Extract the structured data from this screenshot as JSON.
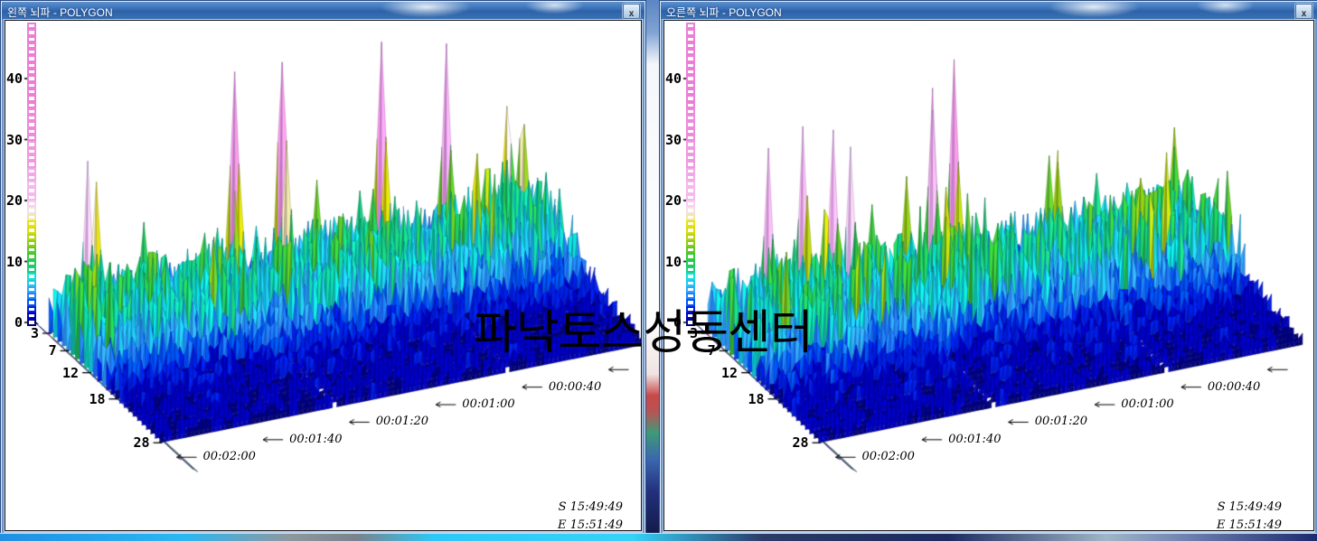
{
  "watermark": {
    "text": "파낙토스성동센터"
  },
  "windows": [
    {
      "title": "왼쪽 뇌파 - POLYGON",
      "close_label": "x"
    },
    {
      "title": "오른쪽 뇌파 - POLYGON",
      "close_label": "x"
    }
  ],
  "chart_data": [
    {
      "type": "surface",
      "subtype": "eeg-3d-waterfall-polygon",
      "window_title": "왼쪽 뇌파 - POLYGON",
      "amplitude_axis": {
        "ticks": [
          0,
          10,
          20,
          30,
          40
        ],
        "range": [
          0,
          49
        ]
      },
      "frequency_axis": {
        "ticks": [
          3,
          7,
          12,
          18,
          28
        ],
        "range": [
          2,
          28
        ]
      },
      "time_axis": {
        "labels": [
          "00:00:40",
          "00:01:00",
          "00:01:20",
          "00:01:40",
          "00:02:00"
        ],
        "step_seconds": 20,
        "direction": "time-increases-toward-lower-left"
      },
      "session": {
        "start": "S 15:49:49",
        "end": "E 15:51:49"
      },
      "legend_position": "left-colorbar",
      "synthesis": {
        "seed": 20417,
        "rows": 27,
        "cols": 113,
        "gap_columns": [
          40,
          80
        ],
        "spike_clusters": [
          7,
          30,
          57,
          82,
          104
        ],
        "max_amplitude": 36
      }
    },
    {
      "type": "surface",
      "subtype": "eeg-3d-waterfall-polygon",
      "window_title": "오른쪽 뇌파 - POLYGON",
      "amplitude_axis": {
        "ticks": [
          0,
          10,
          20,
          30,
          40
        ],
        "range": [
          0,
          49
        ]
      },
      "frequency_axis": {
        "ticks": [
          3,
          7,
          12,
          18,
          28
        ],
        "range": [
          2,
          28
        ]
      },
      "time_axis": {
        "labels": [
          "00:00:40",
          "00:01:00",
          "00:01:20",
          "00:01:40",
          "00:02:00"
        ],
        "step_seconds": 20,
        "direction": "time-increases-toward-lower-left"
      },
      "session": {
        "start": "S 15:49:49",
        "end": "E 15:51:49"
      },
      "legend_position": "left-colorbar",
      "synthesis": {
        "seed": 91537,
        "rows": 27,
        "cols": 113,
        "gap_columns": [
          40,
          80
        ],
        "spike_clusters": [
          10,
          28,
          50,
          76,
          100
        ],
        "max_amplitude": 36
      }
    }
  ],
  "colormap": {
    "stops": [
      [
        0,
        "#000080"
      ],
      [
        1,
        "#0000C0"
      ],
      [
        2,
        "#0020E0"
      ],
      [
        3,
        "#0055F0"
      ],
      [
        4,
        "#2080FF"
      ],
      [
        5,
        "#30A8F8"
      ],
      [
        6,
        "#20C8F0"
      ],
      [
        7,
        "#10E0D8"
      ],
      [
        8,
        "#10D8A8"
      ],
      [
        9,
        "#18D080"
      ],
      [
        10,
        "#20CC58"
      ],
      [
        11,
        "#38C838"
      ],
      [
        12,
        "#60C828"
      ],
      [
        13,
        "#90CC18"
      ],
      [
        14,
        "#B8D410"
      ],
      [
        15,
        "#D8DC08"
      ],
      [
        16,
        "#E8E408"
      ],
      [
        17,
        "#EEE8A8"
      ],
      [
        18,
        "#F4E0E4"
      ],
      [
        19,
        "#F8D0F0"
      ],
      [
        20,
        "#F4B8EC"
      ],
      [
        23,
        "#F2A8E6"
      ],
      [
        26,
        "#F098E0"
      ],
      [
        30,
        "#EE8ADA"
      ],
      [
        35,
        "#EC7ED6"
      ]
    ],
    "axis_fan_colors": [
      "#16307E",
      "#16307E",
      "#16307E",
      "#C04CC8",
      "#C04CC8",
      "#92B606",
      "#206868"
    ],
    "origin_marker_color": "#000080"
  }
}
